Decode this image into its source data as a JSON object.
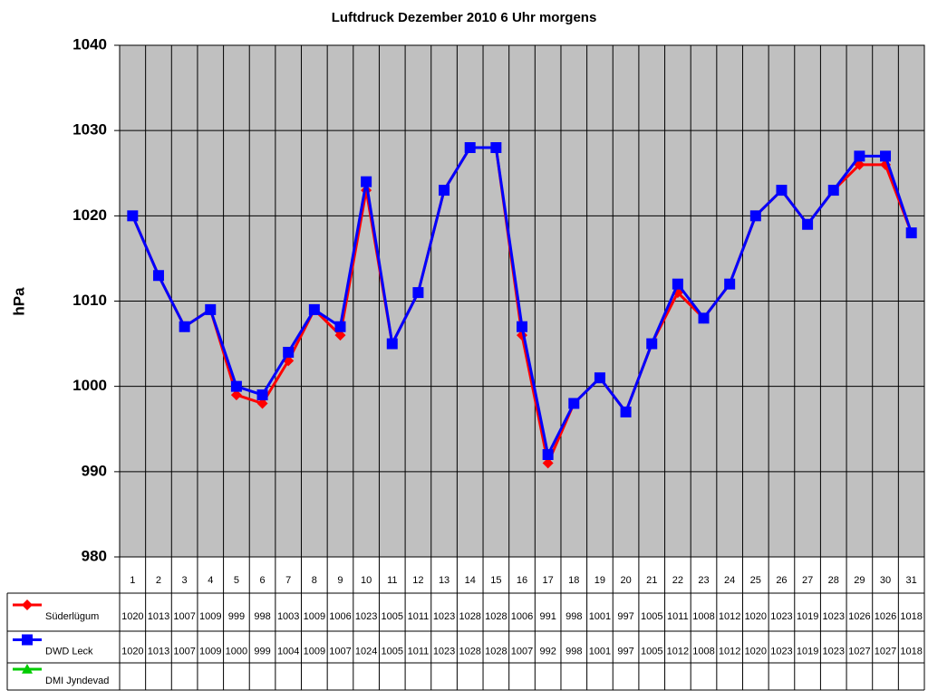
{
  "chart_data": {
    "type": "line",
    "title": "Luftdruck Dezember 2010 6 Uhr morgens",
    "y_label": "hPa",
    "categories": [
      "1",
      "2",
      "3",
      "4",
      "5",
      "6",
      "7",
      "8",
      "9",
      "10",
      "11",
      "12",
      "13",
      "14",
      "15",
      "16",
      "17",
      "18",
      "19",
      "20",
      "21",
      "22",
      "23",
      "24",
      "25",
      "26",
      "27",
      "28",
      "29",
      "30",
      "31"
    ],
    "series": [
      {
        "name": "Süderlügum",
        "color": "#ff0000",
        "marker": "diamond",
        "values": [
          1020,
          1013,
          1007,
          1009,
          999,
          998,
          1003,
          1009,
          1006,
          1023,
          1005,
          1011,
          1023,
          1028,
          1028,
          1006,
          991,
          998,
          1001,
          997,
          1005,
          1011,
          1008,
          1012,
          1020,
          1023,
          1019,
          1023,
          1026,
          1026,
          1018
        ]
      },
      {
        "name": "DWD Leck",
        "color": "#0000ff",
        "marker": "square",
        "values": [
          1020,
          1013,
          1007,
          1009,
          1000,
          999,
          1004,
          1009,
          1007,
          1024,
          1005,
          1011,
          1023,
          1028,
          1028,
          1007,
          992,
          998,
          1001,
          997,
          1005,
          1012,
          1008,
          1012,
          1020,
          1023,
          1019,
          1023,
          1027,
          1027,
          1018
        ]
      },
      {
        "name": "DMI Jyndevad",
        "color": "#00cc00",
        "marker": "triangle",
        "values": [
          null,
          null,
          null,
          null,
          null,
          null,
          null,
          null,
          null,
          null,
          null,
          null,
          null,
          null,
          null,
          null,
          null,
          null,
          null,
          null,
          null,
          null,
          null,
          null,
          null,
          null,
          null,
          null,
          null,
          null,
          null
        ]
      }
    ],
    "ylim": [
      980,
      1040
    ],
    "yticks": [
      980,
      990,
      1000,
      1010,
      1020,
      1030,
      1040
    ],
    "grid": true,
    "plot_background": "#c0c0c0"
  }
}
